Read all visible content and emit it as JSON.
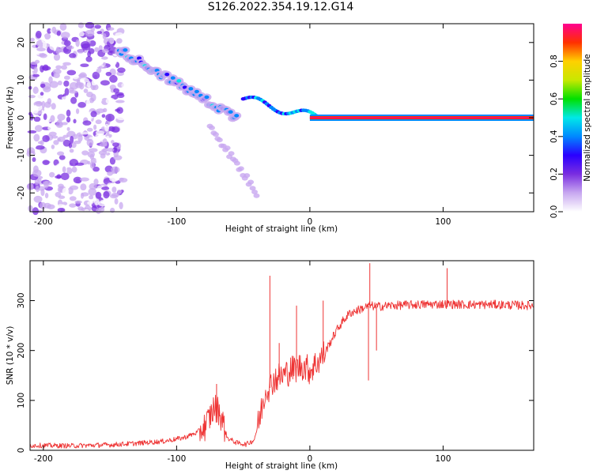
{
  "title": "S126.2022.354.19.12.G14",
  "chart_data": [
    {
      "type": "heatmap",
      "xlabel": "Height of straight line (km)",
      "ylabel": "Frequency (Hz)",
      "xlim": [
        -210,
        168
      ],
      "ylim": [
        -25,
        25
      ],
      "x_ticks": [
        -200,
        -100,
        0,
        100
      ],
      "y_ticks": [
        -20,
        -10,
        0,
        10,
        20
      ],
      "colorbar": {
        "label": "Normalized spectral amplitude",
        "range": [
          0,
          1
        ],
        "ticks": [
          "0.0",
          "0.2",
          "0.4",
          "0.6",
          "0.8"
        ],
        "colormap": [
          "#ffffff",
          "#c8a8f0",
          "#7a2ee0",
          "#2a00ff",
          "#0088ff",
          "#00e8e8",
          "#00e000",
          "#c8e800",
          "#ffd000",
          "#ff3000",
          "#ff0090"
        ]
      },
      "features": {
        "noise_region_x": [
          -210,
          -140
        ],
        "descending_branch_x": [
          -143,
          -55
        ],
        "descending_branch_freq_start": 18,
        "descending_branch_freq_end": 0,
        "lower_branch_freq_end": -20,
        "carrier_line_start_x": 0,
        "carrier_line_freq": 0
      }
    },
    {
      "type": "line",
      "xlabel": "Height of straight line (km)",
      "ylabel": "SNR (10 * v/v)",
      "xlim": [
        -210,
        168
      ],
      "ylim": [
        0,
        380
      ],
      "x_ticks": [
        -200,
        -100,
        0,
        100
      ],
      "y_ticks": [
        0,
        100,
        200,
        300
      ],
      "color": "#ee3333",
      "series": [
        {
          "x": [
            -210,
            -180,
            -150,
            -130,
            -110,
            -95,
            -85,
            -78,
            -72,
            -68,
            -62,
            -55,
            -48,
            -42,
            -38,
            -35,
            -32,
            -30,
            -28,
            -25,
            -20,
            -15,
            -10,
            -5,
            0,
            5,
            10,
            15,
            20,
            25,
            30,
            35,
            40,
            45,
            50,
            60,
            80,
            100,
            120,
            140,
            168
          ],
          "values": [
            10,
            9,
            11,
            14,
            18,
            25,
            35,
            50,
            85,
            80,
            25,
            15,
            12,
            20,
            60,
            100,
            130,
            125,
            140,
            145,
            150,
            160,
            165,
            170,
            160,
            175,
            190,
            215,
            240,
            260,
            275,
            280,
            285,
            290,
            288,
            290,
            292,
            293,
            292,
            292,
            290
          ]
        }
      ],
      "spikes": [
        {
          "x": -70,
          "value": 133
        },
        {
          "x": -30,
          "value": 350
        },
        {
          "x": -23,
          "value": 215
        },
        {
          "x": -10,
          "value": 290
        },
        {
          "x": 10,
          "value": 300
        },
        {
          "x": 45,
          "value": 375
        },
        {
          "x": 44,
          "value": 140
        },
        {
          "x": 50,
          "value": 200
        },
        {
          "x": 103,
          "value": 365
        }
      ]
    }
  ]
}
